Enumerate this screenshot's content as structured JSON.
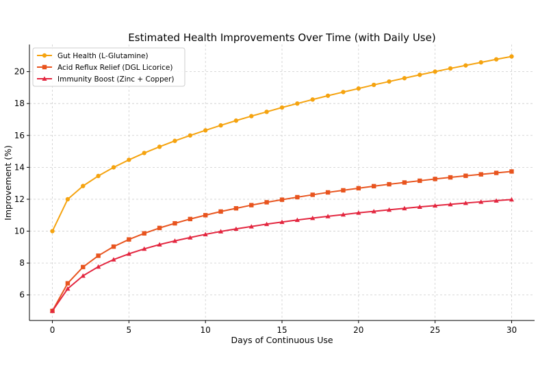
{
  "chart_data": {
    "type": "line",
    "title": "Estimated Health Improvements Over Time (with Daily Use)",
    "xlabel": "Days of Continuous Use",
    "ylabel": "Improvement (%)",
    "xlim": [
      -1.5,
      31.5
    ],
    "ylim": [
      4.4,
      21.7
    ],
    "xticks": [
      0,
      5,
      10,
      15,
      20,
      25,
      30
    ],
    "yticks": [
      6,
      8,
      10,
      12,
      14,
      16,
      18,
      20
    ],
    "grid": true,
    "legend_position": "top-left",
    "x": [
      0,
      1,
      2,
      3,
      4,
      5,
      6,
      7,
      8,
      9,
      10,
      11,
      12,
      13,
      14,
      15,
      16,
      17,
      18,
      19,
      20,
      21,
      22,
      23,
      24,
      25,
      26,
      27,
      28,
      29,
      30
    ],
    "series": [
      {
        "name": "Gut Health (L-Glutamine)",
        "color": "#f5a30f",
        "marker": "circle",
        "values": [
          10.0,
          12.0,
          12.83,
          13.46,
          14.0,
          14.47,
          14.9,
          15.29,
          15.66,
          16.0,
          16.32,
          16.63,
          16.93,
          17.21,
          17.48,
          17.75,
          18.0,
          18.25,
          18.49,
          18.72,
          18.94,
          19.17,
          19.38,
          19.59,
          19.8,
          20.0,
          20.2,
          20.39,
          20.58,
          20.77,
          20.95
        ]
      },
      {
        "name": "Acid Reflux Relief (DGL Licorice)",
        "color": "#e8541e",
        "marker": "square",
        "values": [
          5.0,
          6.73,
          7.75,
          8.46,
          9.03,
          9.48,
          9.86,
          10.2,
          10.49,
          10.76,
          11.0,
          11.23,
          11.43,
          11.63,
          11.81,
          11.97,
          12.13,
          12.28,
          12.43,
          12.56,
          12.69,
          12.82,
          12.94,
          13.05,
          13.16,
          13.27,
          13.37,
          13.47,
          13.56,
          13.65,
          13.74
        ]
      },
      {
        "name": "Immunity Boost (Zinc + Copper)",
        "color": "#e3263f",
        "marker": "triangle",
        "values": [
          5.0,
          6.39,
          7.2,
          7.77,
          8.22,
          8.58,
          8.89,
          9.16,
          9.39,
          9.6,
          9.8,
          9.98,
          10.14,
          10.29,
          10.44,
          10.57,
          10.7,
          10.82,
          10.93,
          11.04,
          11.15,
          11.24,
          11.34,
          11.43,
          11.52,
          11.6,
          11.68,
          11.76,
          11.84,
          11.91,
          11.98
        ]
      }
    ]
  }
}
